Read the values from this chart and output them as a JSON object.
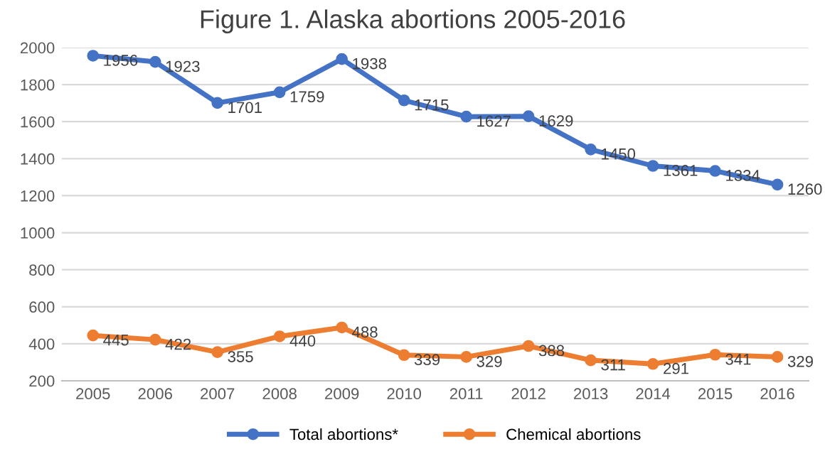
{
  "chart_data": {
    "type": "line",
    "title": "Figure 1. Alaska abortions 2005-2016",
    "categories": [
      "2005",
      "2006",
      "2007",
      "2008",
      "2009",
      "2010",
      "2011",
      "2012",
      "2013",
      "2014",
      "2015",
      "2016"
    ],
    "series": [
      {
        "name": "Total abortions*",
        "color": "#4472c4",
        "values": [
          1956,
          1923,
          1701,
          1759,
          1938,
          1715,
          1627,
          1629,
          1450,
          1361,
          1334,
          1260
        ]
      },
      {
        "name": "Chemical abortions",
        "color": "#ed7d31",
        "values": [
          445,
          422,
          355,
          440,
          488,
          339,
          329,
          388,
          311,
          291,
          341,
          329
        ]
      }
    ],
    "ylim": [
      200,
      2000
    ],
    "yticks": [
      200,
      400,
      600,
      800,
      1000,
      1200,
      1400,
      1600,
      1800,
      2000
    ],
    "grid": "y",
    "legend": "bottom",
    "marker": "circle",
    "line_style": "solid",
    "data_labels": true
  }
}
